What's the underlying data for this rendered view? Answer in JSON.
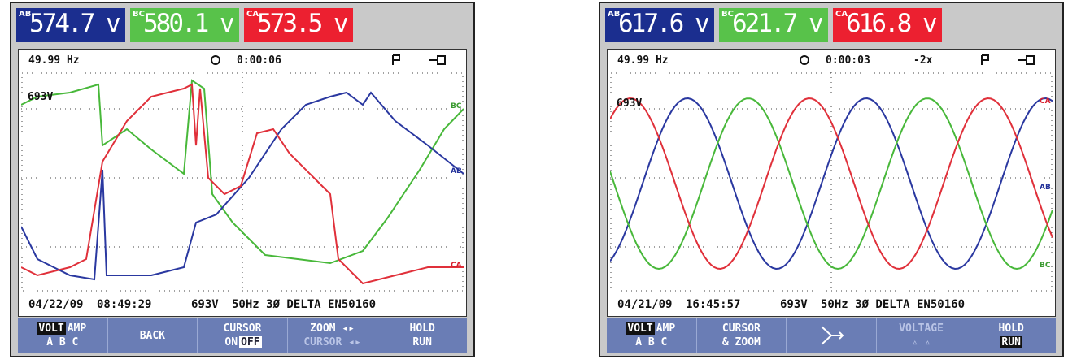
{
  "panels": [
    {
      "readings": [
        {
          "tag": "AB",
          "value": "574.7 v"
        },
        {
          "tag": "BC",
          "value": "580.1 v"
        },
        {
          "tag": "CA",
          "value": "573.5 v"
        }
      ],
      "status": {
        "frequency": "49.99 Hz",
        "timer": "0:00:06"
      },
      "plot": {
        "scale_label": "693V",
        "trace_labels": [
          "BC",
          "AB",
          "CA"
        ]
      },
      "footer": {
        "date": "04/22/09",
        "time": "08:49:29",
        "range": "693V",
        "config": "50Hz 3Ø DELTA EN50160"
      },
      "softkeys": [
        {
          "lines": [
            [
              "VOLT",
              "AMP"
            ],
            [
              "A B C"
            ]
          ]
        },
        {
          "lines": [
            [
              "BACK"
            ]
          ]
        },
        {
          "lines": [
            [
              "CURSOR"
            ],
            [
              "ON",
              "OFF"
            ]
          ]
        },
        {
          "lines": [
            [
              "ZOOM ◂▸"
            ],
            [
              "CURSOR ◂▸"
            ]
          ]
        },
        {
          "lines": [
            [
              "HOLD"
            ],
            [
              "RUN"
            ]
          ]
        }
      ]
    },
    {
      "readings": [
        {
          "tag": "AB",
          "value": "617.6 v"
        },
        {
          "tag": "BC",
          "value": "621.7 v"
        },
        {
          "tag": "CA",
          "value": "616.8 v"
        }
      ],
      "status": {
        "frequency": "49.99 Hz",
        "timer": "0:00:03",
        "zoom": "-2x"
      },
      "plot": {
        "scale_label": "693V",
        "trace_labels": [
          "CA",
          "AB",
          "BC"
        ]
      },
      "footer": {
        "date": "04/21/09",
        "time": "16:45:57",
        "range": "693V",
        "config": "50Hz 3Ø DELTA EN50160"
      },
      "softkeys": [
        {
          "lines": [
            [
              "VOLT",
              "AMP"
            ],
            [
              "A B C"
            ]
          ]
        },
        {
          "lines": [
            [
              "CURSOR"
            ],
            [
              "& ZOOM"
            ]
          ]
        },
        {},
        {
          "lines": [
            [
              "VOLTAGE"
            ],
            [
              "▵ ▵"
            ]
          ]
        },
        {
          "lines": [
            [
              "HOLD"
            ],
            [
              "RUN"
            ]
          ]
        }
      ]
    }
  ]
}
